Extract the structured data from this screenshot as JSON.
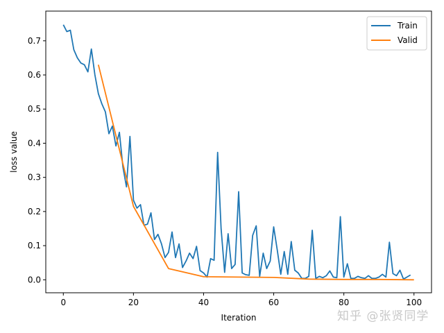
{
  "chart_data": {
    "type": "line",
    "title": "",
    "xlabel": "Iteration",
    "ylabel": "loss value",
    "xlim": [
      -5,
      105
    ],
    "ylim": [
      -0.038,
      0.787
    ],
    "xticks": [
      0,
      20,
      40,
      60,
      80,
      100
    ],
    "yticks": [
      0.0,
      0.1,
      0.2,
      0.3,
      0.4,
      0.5,
      0.6,
      0.7
    ],
    "ytick_labels": [
      "0.0",
      "0.1",
      "0.2",
      "0.3",
      "0.4",
      "0.5",
      "0.6",
      "0.7"
    ],
    "xtick_labels": [
      "0",
      "20",
      "40",
      "60",
      "80",
      "100"
    ],
    "grid": false,
    "legend_position": "upper right",
    "series": [
      {
        "name": "Train",
        "color": "#1f77b4",
        "x": [
          0,
          1,
          2,
          3,
          4,
          5,
          6,
          7,
          8,
          9,
          10,
          11,
          12,
          13,
          14,
          15,
          16,
          17,
          18,
          19,
          20,
          21,
          22,
          23,
          24,
          25,
          26,
          27,
          28,
          29,
          30,
          31,
          32,
          33,
          34,
          35,
          36,
          37,
          38,
          39,
          40,
          41,
          42,
          43,
          44,
          45,
          46,
          47,
          48,
          49,
          50,
          51,
          52,
          53,
          54,
          55,
          56,
          57,
          58,
          59,
          60,
          61,
          62,
          63,
          64,
          65,
          66,
          67,
          68,
          69,
          70,
          71,
          72,
          73,
          74,
          75,
          76,
          77,
          78,
          79,
          80,
          81,
          82,
          83,
          84,
          85,
          86,
          87,
          88,
          89,
          90,
          91,
          92,
          93,
          94,
          95,
          96,
          97,
          98,
          99
        ],
        "values": [
          0.747,
          0.727,
          0.731,
          0.674,
          0.65,
          0.635,
          0.63,
          0.609,
          0.676,
          0.6,
          0.545,
          0.515,
          0.492,
          0.428,
          0.45,
          0.392,
          0.432,
          0.33,
          0.272,
          0.42,
          0.233,
          0.21,
          0.22,
          0.16,
          0.163,
          0.196,
          0.118,
          0.133,
          0.105,
          0.065,
          0.08,
          0.14,
          0.065,
          0.105,
          0.036,
          0.055,
          0.078,
          0.062,
          0.098,
          0.027,
          0.02,
          0.008,
          0.062,
          0.057,
          0.373,
          0.15,
          0.022,
          0.135,
          0.033,
          0.045,
          0.258,
          0.02,
          0.015,
          0.013,
          0.13,
          0.158,
          0.01,
          0.078,
          0.033,
          0.055,
          0.155,
          0.088,
          0.016,
          0.083,
          0.016,
          0.112,
          0.028,
          0.02,
          0.004,
          0.004,
          0.01,
          0.145,
          0.004,
          0.01,
          0.006,
          0.012,
          0.026,
          0.008,
          0.006,
          0.185,
          0.008,
          0.047,
          0.004,
          0.004,
          0.01,
          0.006,
          0.004,
          0.012,
          0.004,
          0.004,
          0.008,
          0.016,
          0.008,
          0.11,
          0.018,
          0.012,
          0.028,
          0.002,
          0.008,
          0.014
        ]
      },
      {
        "name": "Valid",
        "color": "#ff7f0e",
        "x": [
          10,
          20,
          30,
          40,
          50,
          60,
          70,
          80,
          90,
          100
        ],
        "values": [
          0.63,
          0.215,
          0.033,
          0.009,
          0.008,
          0.007,
          0.002,
          0.001,
          0.001,
          0.0
        ]
      }
    ]
  },
  "legend": {
    "items": [
      {
        "label": "Train",
        "color": "#1f77b4"
      },
      {
        "label": "Valid",
        "color": "#ff7f0e"
      }
    ]
  },
  "watermark": "知乎 @张贤同学"
}
